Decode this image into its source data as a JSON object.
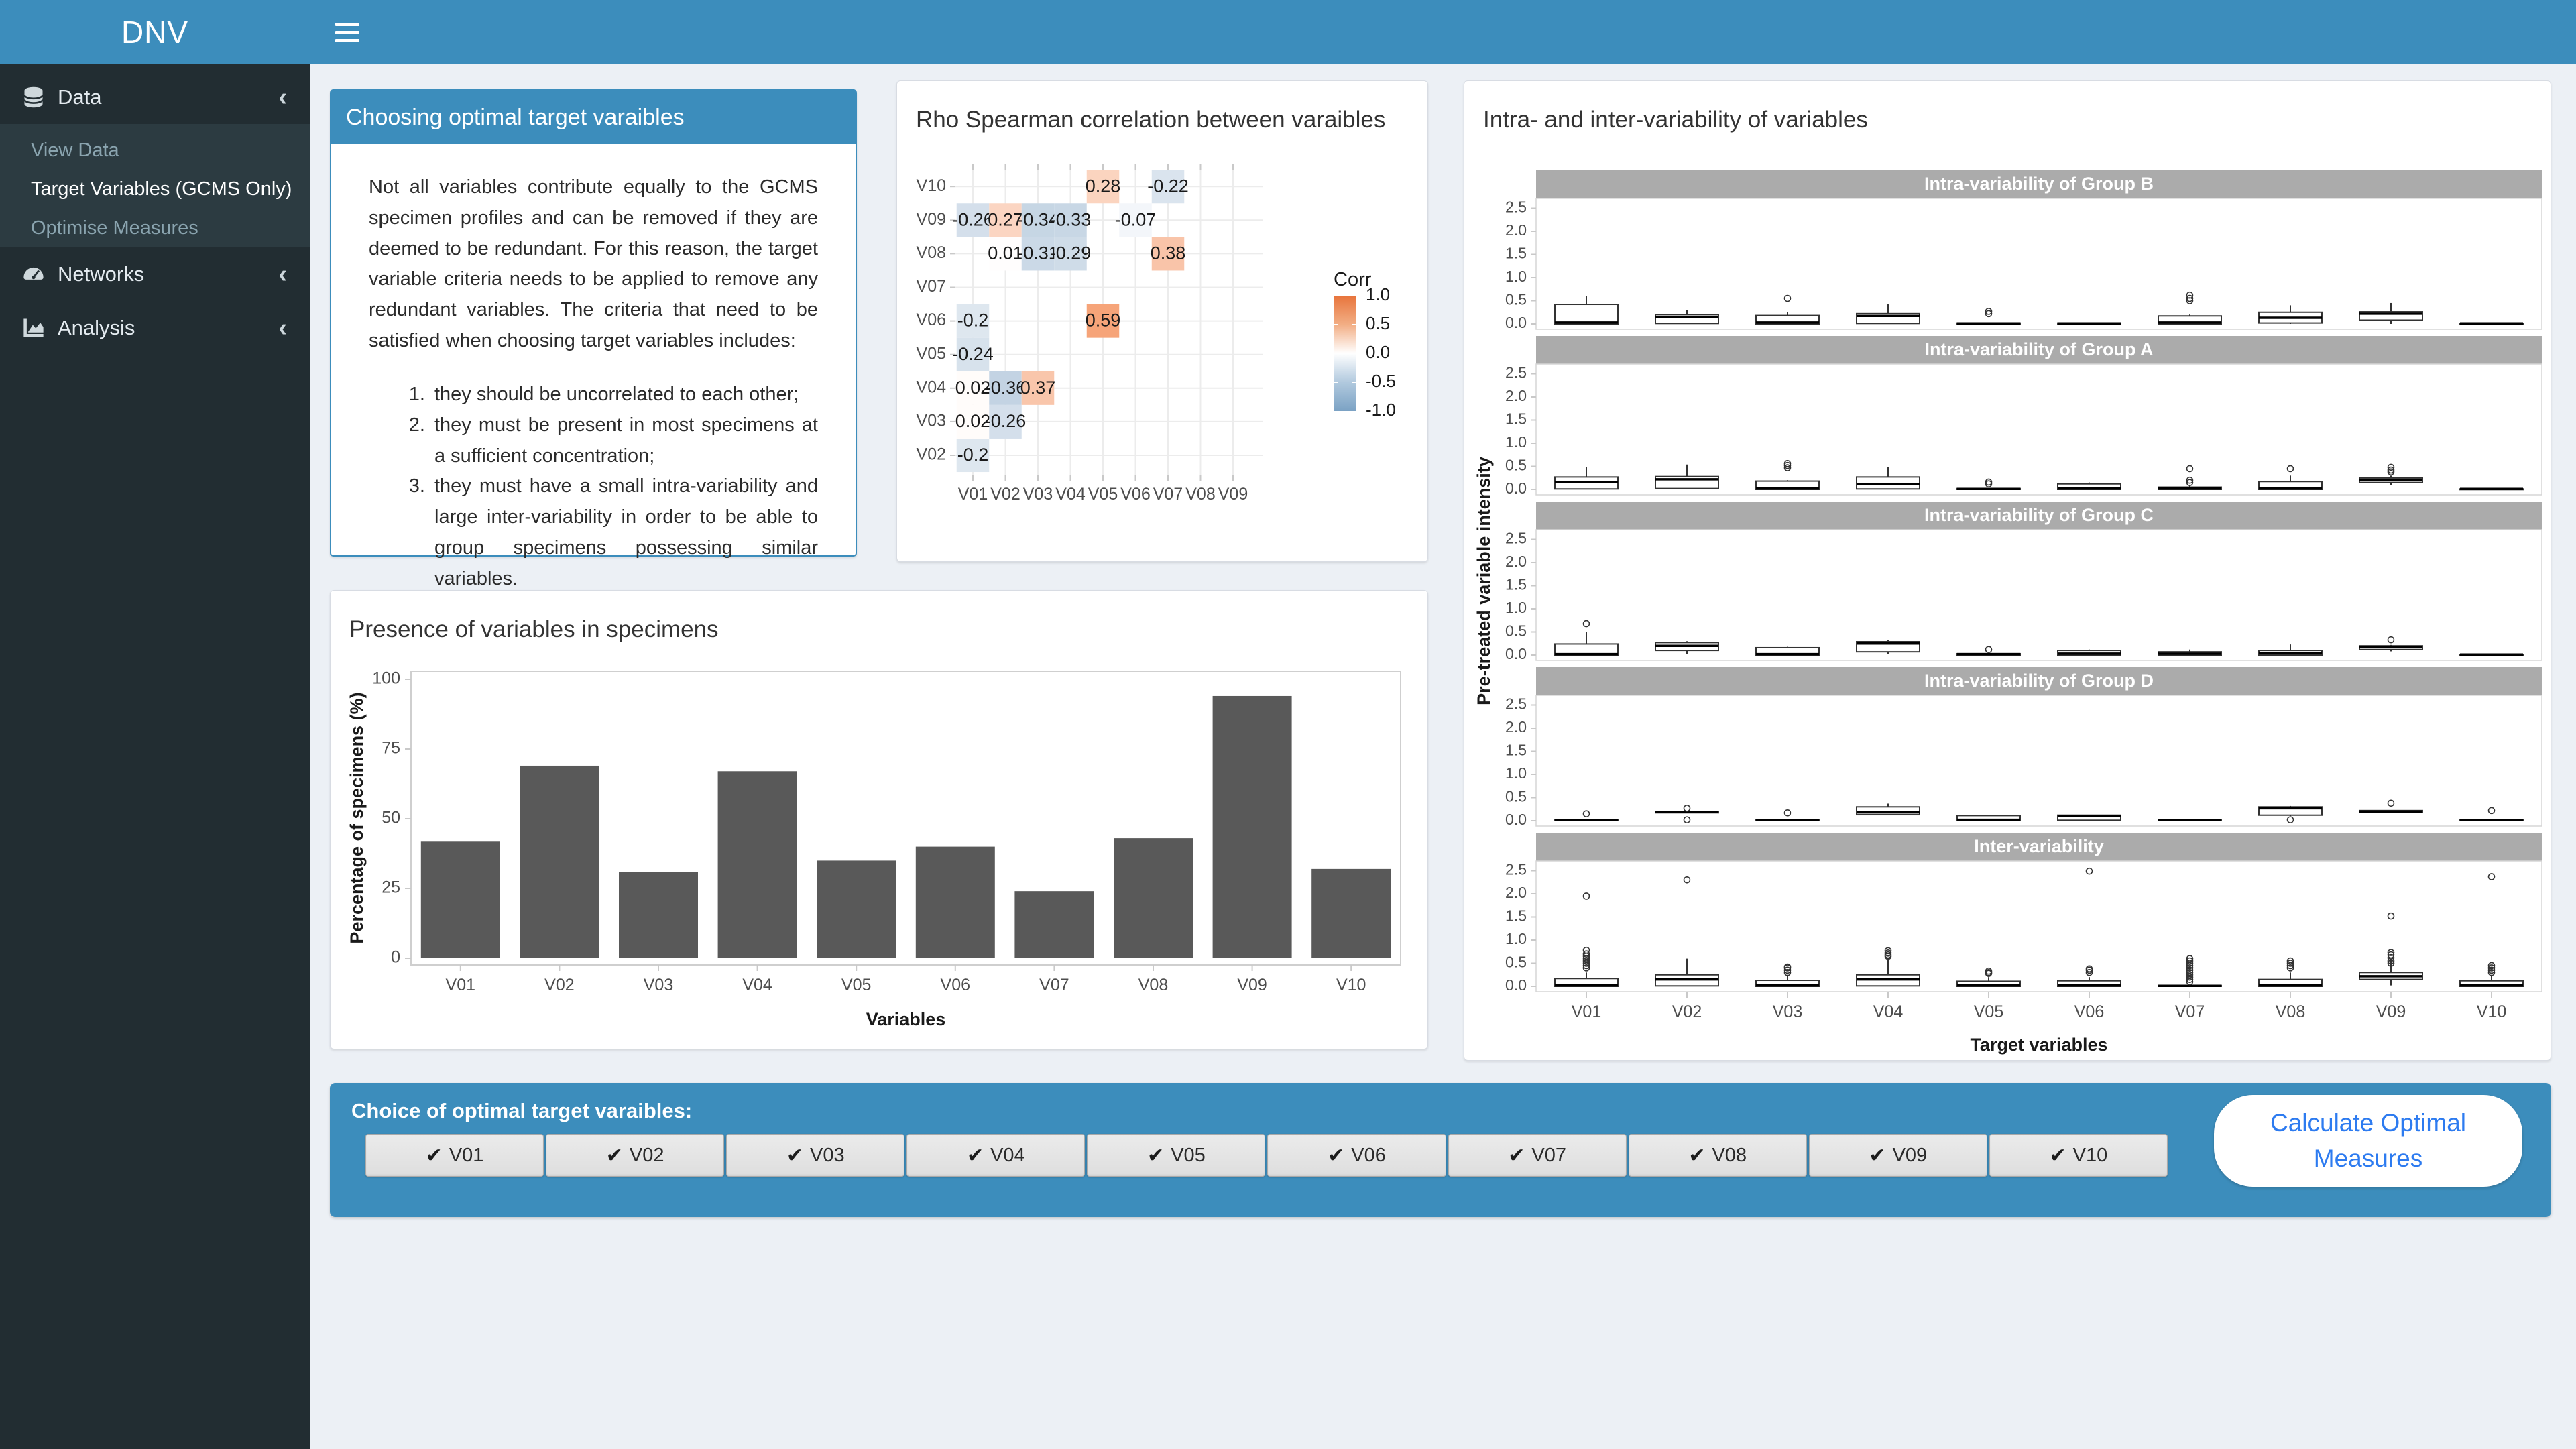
{
  "header": {
    "brand": "DNV"
  },
  "sidebar": {
    "sections": [
      {
        "label": "Data",
        "icon": "database-icon",
        "expanded": true,
        "children": [
          {
            "label": "View Data",
            "active": false
          },
          {
            "label": "Target Variables (GCMS Only)",
            "active": true
          },
          {
            "label": "Optimise Measures",
            "active": false
          }
        ]
      },
      {
        "label": "Networks",
        "icon": "gauge-icon",
        "children": []
      },
      {
        "label": "Analysis",
        "icon": "chart-icon",
        "children": []
      }
    ]
  },
  "info_box": {
    "title": "Choosing optimal target varaibles",
    "paragraph": "Not all variables contribute equally to the GCMS specimen profiles and can be removed if they are deemed to be redundant. For this reason, the target variable criteria needs to be applied to remove any redundant variables. The criteria that need to be satisfied when choosing target variables includes:",
    "list": [
      "they should be uncorrelated to each other;",
      "they must be present in most specimens at a sufficient concentration;",
      "they must have a small intra-variability and large inter-variability in order to be able to group specimens possessing similar variables."
    ]
  },
  "footer_bar": {
    "label": "Choice of optimal target varaibles:",
    "options": [
      {
        "label": "V01",
        "checked": true
      },
      {
        "label": "V02",
        "checked": true
      },
      {
        "label": "V03",
        "checked": true
      },
      {
        "label": "V04",
        "checked": true
      },
      {
        "label": "V05",
        "checked": true
      },
      {
        "label": "V06",
        "checked": true
      },
      {
        "label": "V07",
        "checked": true
      },
      {
        "label": "V08",
        "checked": true
      },
      {
        "label": "V09",
        "checked": true
      },
      {
        "label": "V10",
        "checked": true
      }
    ],
    "button": "Calculate Optimal Measures"
  },
  "colors": {
    "accent": "#3c8dbc",
    "sidebar_bg": "#222d32",
    "submenu_bg": "#2c3b41",
    "bar_fill": "#595959",
    "strip_bg": "#ababab",
    "button_text": "#2d7bf0",
    "corr_high": "#f0651c",
    "corr_low": "#5885b1"
  },
  "chart_data": [
    {
      "id": "presence",
      "type": "bar",
      "title": "Presence of variables in specimens",
      "xlabel": "Variables",
      "ylabel": "Percentage of specimens (%)",
      "ylim": [
        0,
        100
      ],
      "yticks": [
        0,
        25,
        50,
        75,
        100
      ],
      "categories": [
        "V01",
        "V02",
        "V03",
        "V04",
        "V05",
        "V06",
        "V07",
        "V08",
        "V09",
        "V10"
      ],
      "values": [
        42,
        69,
        31,
        67,
        35,
        40,
        24,
        43,
        94,
        32
      ]
    },
    {
      "id": "correlation",
      "type": "heatmap",
      "title": "Rho Spearman correlation between varaibles",
      "x_categories": [
        "V01",
        "V02",
        "V03",
        "V04",
        "V05",
        "V06",
        "V07",
        "V08",
        "V09"
      ],
      "y_categories": [
        "V02",
        "V03",
        "V04",
        "V05",
        "V06",
        "V07",
        "V08",
        "V09",
        "V10"
      ],
      "legend": {
        "title": "Corr",
        "ticks": [
          1.0,
          0.5,
          0.0,
          -0.5,
          -1.0
        ]
      },
      "cells": [
        {
          "x": "V01",
          "y": "V02",
          "v": -0.2
        },
        {
          "x": "V01",
          "y": "V03",
          "v": 0.02
        },
        {
          "x": "V02",
          "y": "V03",
          "v": -0.26
        },
        {
          "x": "V01",
          "y": "V04",
          "v": 0.02
        },
        {
          "x": "V02",
          "y": "V04",
          "v": -0.36
        },
        {
          "x": "V03",
          "y": "V04",
          "v": 0.37
        },
        {
          "x": "V01",
          "y": "V05",
          "v": -0.24
        },
        {
          "x": "V01",
          "y": "V06",
          "v": -0.2
        },
        {
          "x": "V05",
          "y": "V06",
          "v": 0.59
        },
        {
          "x": "V02",
          "y": "V08",
          "v": 0.01
        },
        {
          "x": "V03",
          "y": "V08",
          "v": -0.31
        },
        {
          "x": "V04",
          "y": "V08",
          "v": -0.29
        },
        {
          "x": "V07",
          "y": "V08",
          "v": 0.38
        },
        {
          "x": "V01",
          "y": "V09",
          "v": -0.26
        },
        {
          "x": "V02",
          "y": "V09",
          "v": 0.27
        },
        {
          "x": "V03",
          "y": "V09",
          "v": -0.34
        },
        {
          "x": "V04",
          "y": "V09",
          "v": -0.33
        },
        {
          "x": "V06",
          "y": "V09",
          "v": -0.07
        },
        {
          "x": "V05",
          "y": "V10",
          "v": 0.28
        },
        {
          "x": "V07",
          "y": "V10",
          "v": -0.22
        }
      ]
    },
    {
      "id": "variability",
      "type": "boxplot",
      "title": "Intra- and inter-variability of variables",
      "xlabel": "Target variables",
      "ylabel": "Pre-treated variable intensity",
      "ylim": [
        0,
        2.5
      ],
      "yticks": [
        0.0,
        0.5,
        1.0,
        1.5,
        2.0,
        2.5
      ],
      "categories": [
        "V01",
        "V02",
        "V03",
        "V04",
        "V05",
        "V06",
        "V07",
        "V08",
        "V09",
        "V10"
      ],
      "facets": [
        {
          "label": "Intra-variability of Group B",
          "boxes": [
            [
              0,
              0,
              0.03,
              0.42,
              0.6,
              []
            ],
            [
              0,
              0.01,
              0.15,
              0.2,
              0.3,
              []
            ],
            [
              0,
              0,
              0.03,
              0.18,
              0.26,
              [
                0.55
              ]
            ],
            [
              0,
              0.01,
              0.17,
              0.22,
              0.42,
              []
            ],
            [
              0,
              0,
              0.01,
              0.02,
              0.03,
              [
                0.22,
                0.27
              ]
            ],
            [
              0,
              0,
              0.01,
              0.02,
              0.03,
              []
            ],
            [
              0,
              0,
              0.03,
              0.17,
              0.2,
              [
                0.5,
                0.55,
                0.62
              ]
            ],
            [
              0,
              0.02,
              0.13,
              0.25,
              0.4,
              []
            ],
            [
              0,
              0.08,
              0.22,
              0.26,
              0.45,
              []
            ],
            [
              0,
              0,
              0.01,
              0.01,
              0.02,
              []
            ]
          ]
        },
        {
          "label": "Intra-variability of Group A",
          "boxes": [
            [
              0,
              0.01,
              0.16,
              0.27,
              0.48,
              []
            ],
            [
              0,
              0.02,
              0.22,
              0.28,
              0.54,
              []
            ],
            [
              0,
              0,
              0.02,
              0.18,
              0.2,
              [
                0.47,
                0.52,
                0.56
              ]
            ],
            [
              0,
              0.01,
              0.12,
              0.27,
              0.48,
              []
            ],
            [
              0,
              0,
              0.01,
              0.02,
              0.03,
              [
                0.12,
                0.16
              ]
            ],
            [
              0,
              0,
              0.02,
              0.12,
              0.15,
              []
            ],
            [
              0,
              0,
              0.02,
              0.05,
              0.08,
              [
                0.15,
                0.2,
                0.45
              ]
            ],
            [
              0,
              0,
              0.02,
              0.17,
              0.3,
              [
                0.45
              ]
            ],
            [
              0.1,
              0.15,
              0.21,
              0.25,
              0.3,
              [
                0.38,
                0.42,
                0.48
              ]
            ],
            [
              0,
              0,
              0.01,
              0.01,
              0.02,
              []
            ]
          ]
        },
        {
          "label": "Intra-variability of Group C",
          "boxes": [
            [
              0,
              0,
              0.02,
              0.24,
              0.5,
              [
                0.68
              ]
            ],
            [
              0.02,
              0.1,
              0.2,
              0.27,
              0.3,
              []
            ],
            [
              0,
              0,
              0.02,
              0.16,
              0.18,
              []
            ],
            [
              0.02,
              0.07,
              0.25,
              0.29,
              0.33,
              []
            ],
            [
              0,
              0,
              0.02,
              0.03,
              0.04,
              [
                0.12
              ]
            ],
            [
              0,
              0,
              0.03,
              0.1,
              0.12,
              []
            ],
            [
              0,
              0,
              0.03,
              0.07,
              0.12,
              []
            ],
            [
              0,
              0,
              0.04,
              0.1,
              0.23,
              []
            ],
            [
              0.08,
              0.12,
              0.17,
              0.2,
              0.22,
              [
                0.33
              ]
            ],
            [
              0,
              0,
              0.01,
              0.01,
              0.02,
              []
            ]
          ]
        },
        {
          "label": "Intra-variability of Group D",
          "boxes": [
            [
              0,
              0,
              0.01,
              0.02,
              0.03,
              [
                0.15
              ]
            ],
            [
              0.16,
              0.17,
              0.19,
              0.2,
              0.21,
              [
                0.02,
                0.27
              ]
            ],
            [
              0,
              0,
              0.01,
              0.02,
              0.03,
              [
                0.17
              ]
            ],
            [
              0.12,
              0.13,
              0.18,
              0.3,
              0.37,
              []
            ],
            [
              0,
              0,
              0.02,
              0.11,
              0.12,
              []
            ],
            [
              0,
              0.01,
              0.1,
              0.12,
              0.13,
              []
            ],
            [
              0,
              0,
              0.01,
              0.02,
              0.03,
              []
            ],
            [
              0.1,
              0.12,
              0.27,
              0.3,
              0.32,
              [
                0.02
              ]
            ],
            [
              0.17,
              0.18,
              0.2,
              0.22,
              0.23,
              [
                0.38
              ]
            ],
            [
              0,
              0,
              0.01,
              0.02,
              0.03,
              [
                0.22
              ]
            ]
          ]
        },
        {
          "label": "Inter-variability",
          "boxes": [
            [
              0,
              0,
              0.02,
              0.17,
              0.3,
              [
                0.4,
                0.45,
                0.5,
                0.55,
                0.6,
                0.65,
                0.7,
                0.78,
                1.95
              ]
            ],
            [
              0,
              0.01,
              0.15,
              0.25,
              0.6,
              [
                2.3
              ]
            ],
            [
              0,
              0,
              0.02,
              0.13,
              0.25,
              [
                0.3,
                0.35,
                0.4,
                0.42
              ]
            ],
            [
              0,
              0.01,
              0.15,
              0.25,
              0.62,
              [
                0.65,
                0.68,
                0.72,
                0.77
              ]
            ],
            [
              0,
              0,
              0.02,
              0.11,
              0.2,
              [
                0.28,
                0.3,
                0.33
              ]
            ],
            [
              0,
              0,
              0.02,
              0.12,
              0.2,
              [
                0.3,
                0.35,
                0.38,
                2.49
              ]
            ],
            [
              0,
              0,
              0.01,
              0.02,
              0.03,
              [
                0.1,
                0.15,
                0.2,
                0.25,
                0.3,
                0.35,
                0.4,
                0.45,
                0.5,
                0.55,
                0.6
              ]
            ],
            [
              0,
              0,
              0.02,
              0.15,
              0.3,
              [
                0.4,
                0.45,
                0.5,
                0.55
              ]
            ],
            [
              0.02,
              0.15,
              0.22,
              0.3,
              0.6,
              [
                0.5,
                0.55,
                0.62,
                0.68,
                0.73,
                1.52
              ]
            ],
            [
              0,
              0,
              0.02,
              0.12,
              0.25,
              [
                0.3,
                0.35,
                0.4,
                0.45,
                2.37
              ]
            ]
          ]
        }
      ]
    }
  ]
}
